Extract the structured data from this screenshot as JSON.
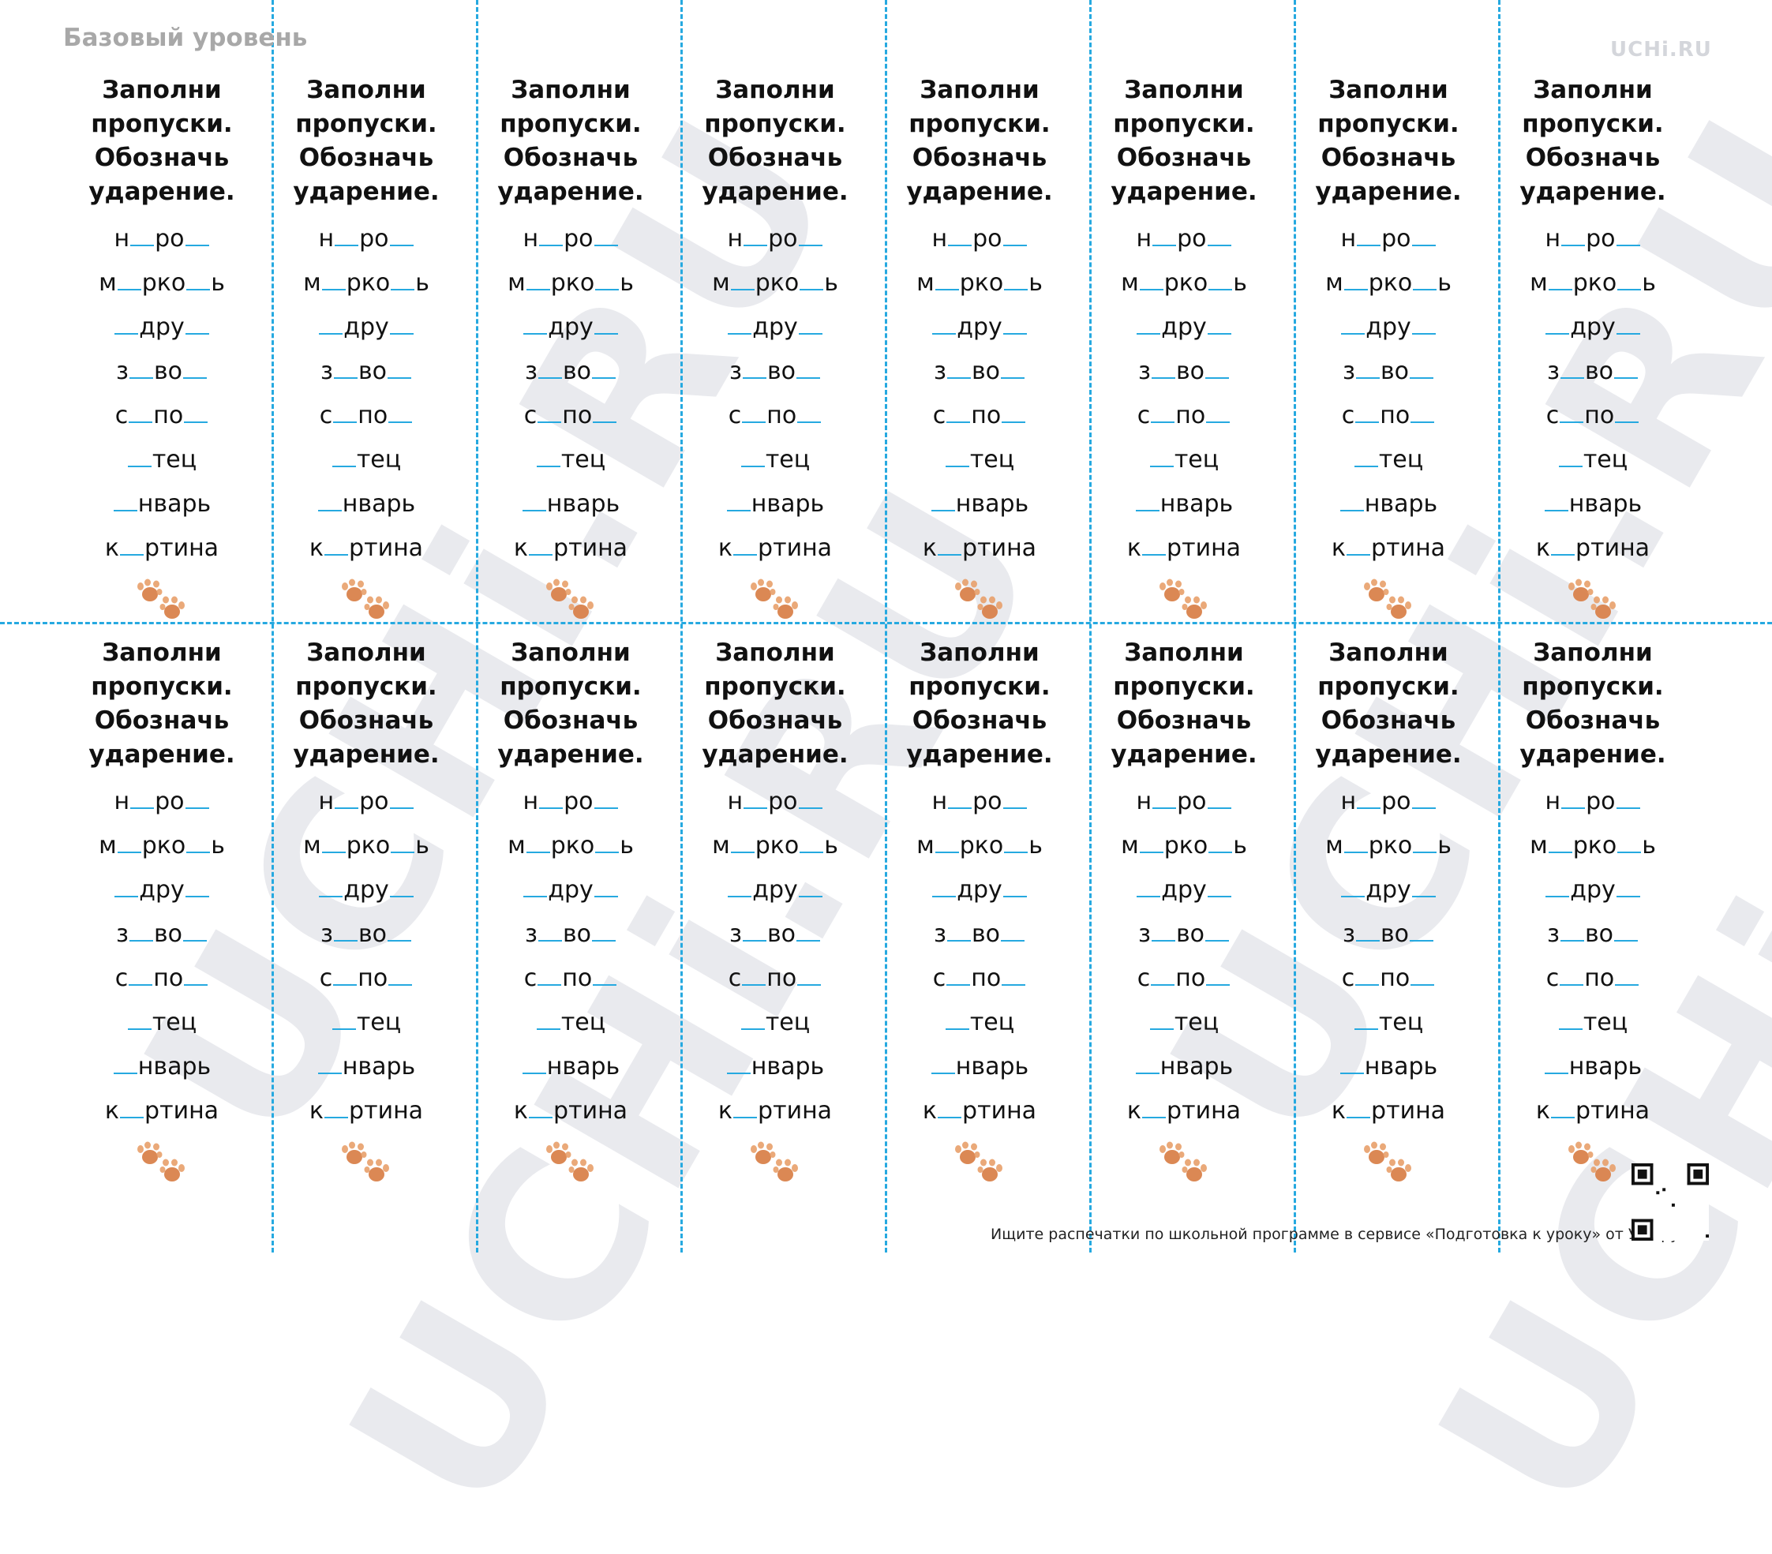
{
  "header": {
    "level": "Базовый уровень",
    "brand": "UCHi.RU"
  },
  "watermark": "UCHi.RU",
  "card": {
    "title_lines": [
      "Заполни",
      "пропуски.",
      "Обозначь",
      "ударение."
    ],
    "words": [
      [
        "н",
        "",
        "ро",
        ""
      ],
      [
        "м",
        "",
        "рко",
        "",
        "ь"
      ],
      [
        "",
        "дру",
        ""
      ],
      [
        "з",
        "",
        "во",
        ""
      ],
      [
        "с",
        "",
        "по",
        ""
      ],
      [
        "",
        "тец"
      ],
      [
        "",
        "нварь"
      ],
      [
        "к",
        "",
        "ртина"
      ]
    ],
    "icon": "paw-icon"
  },
  "layout": {
    "columns": 8,
    "rows": 2
  },
  "footer": {
    "text": "Ищите распечатки по школьной программе в сервисе «Подготовка к уроку» от Учи.ру."
  },
  "colors": {
    "accent": "#26a9e0",
    "paw": "#d9824b",
    "watermark": "#e9eaee"
  }
}
